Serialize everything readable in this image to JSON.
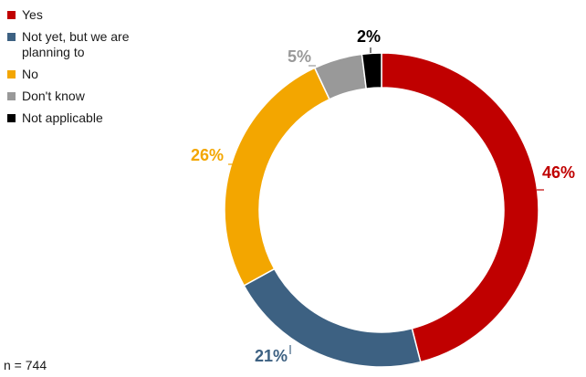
{
  "chart_data": {
    "type": "pie",
    "variant": "donut",
    "categories": [
      "Yes",
      "Not yet, but we are planning to",
      "No",
      "Don't know",
      "Not applicable"
    ],
    "values": [
      46,
      21,
      26,
      5,
      2
    ],
    "labels": [
      "46%",
      "21%",
      "26%",
      "5%",
      "2%"
    ],
    "colors": [
      "#c00000",
      "#3d6182",
      "#f3a600",
      "#999999",
      "#000000"
    ],
    "legend_position": "top-left",
    "legend": [
      {
        "label": "Yes",
        "color": "#c00000"
      },
      {
        "label": "Not yet, but we are planning to",
        "color": "#3d6182"
      },
      {
        "label": "No",
        "color": "#f3a600"
      },
      {
        "label": "Don't know",
        "color": "#999999"
      },
      {
        "label": "Not applicable",
        "color": "#000000"
      }
    ]
  },
  "footnote": "n = 744"
}
